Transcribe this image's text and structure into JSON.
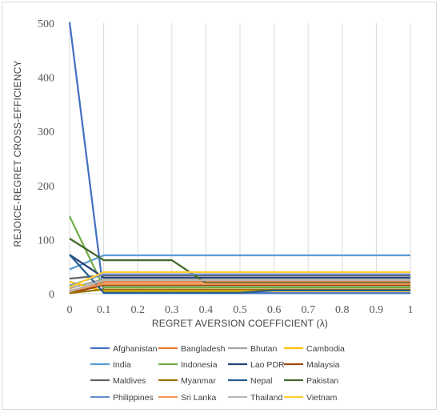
{
  "chart_data": {
    "type": "line",
    "title": "",
    "xlabel": "REGRET AVERSION COEFFICIENT (λ)",
    "ylabel": "REJOICE-REGRET CROSS-EFFICIENCY",
    "x": [
      0,
      0.1,
      0.2,
      0.3,
      0.4,
      0.5,
      0.6,
      0.7,
      0.8,
      0.9,
      1
    ],
    "x_tick_labels": [
      "0",
      "0.1",
      "0.2",
      "0.3",
      "0.4",
      "0.5",
      "0.6",
      "0.7",
      "0.8",
      "0.9",
      "1"
    ],
    "y_tick_labels": [
      "0",
      "100",
      "200",
      "300",
      "400",
      "500"
    ],
    "ylim": [
      0,
      500
    ],
    "xlim": [
      0,
      1
    ],
    "grid": "vertical",
    "legend_position": "bottom",
    "series": [
      {
        "name": "Afghanistan",
        "color": "#4472C4",
        "values": [
          502,
          1,
          1,
          1,
          1,
          1,
          1,
          1,
          1,
          1,
          1
        ]
      },
      {
        "name": "Bangladesh",
        "color": "#ED7D31",
        "values": [
          3,
          22,
          22,
          22,
          22,
          22,
          22,
          22,
          22,
          22,
          22
        ]
      },
      {
        "name": "Bhutan",
        "color": "#A5A5A5",
        "values": [
          10,
          27,
          27,
          27,
          27,
          27,
          27,
          27,
          27,
          27,
          27
        ]
      },
      {
        "name": "Cambodia",
        "color": "#FFC000",
        "values": [
          22,
          5,
          5,
          5,
          5,
          5,
          5,
          5,
          5,
          5,
          5
        ]
      },
      {
        "name": "India",
        "color": "#5B9BD5",
        "values": [
          45,
          71,
          71,
          71,
          71,
          71,
          71,
          71,
          71,
          71,
          71
        ]
      },
      {
        "name": "Indonesia",
        "color": "#70AD47",
        "values": [
          143,
          12,
          12,
          12,
          12,
          12,
          12,
          12,
          12,
          12,
          12
        ]
      },
      {
        "name": "Lao PDR",
        "color": "#264478",
        "values": [
          72,
          30,
          30,
          30,
          30,
          30,
          30,
          30,
          30,
          30,
          30
        ]
      },
      {
        "name": "Malaysia",
        "color": "#9E480E",
        "values": [
          1,
          16,
          16,
          16,
          16,
          16,
          16,
          16,
          16,
          16,
          16
        ]
      },
      {
        "name": "Maldives",
        "color": "#636363",
        "values": [
          28,
          34,
          34,
          34,
          34,
          34,
          34,
          34,
          34,
          34,
          34
        ]
      },
      {
        "name": "Myanmar",
        "color": "#997300",
        "values": [
          1,
          8,
          8,
          8,
          8,
          8,
          8,
          8,
          8,
          8,
          8
        ]
      },
      {
        "name": "Nepal",
        "color": "#255E91",
        "values": [
          72,
          2,
          2,
          2,
          2,
          2,
          6,
          6,
          6,
          6,
          6
        ]
      },
      {
        "name": "Pakistan",
        "color": "#43682B",
        "values": [
          102,
          62,
          62,
          62,
          20,
          20,
          20,
          20,
          20,
          20,
          20
        ]
      },
      {
        "name": "Philippines",
        "color": "#698ED0",
        "values": [
          15,
          36,
          36,
          36,
          36,
          36,
          36,
          36,
          36,
          36,
          36
        ]
      },
      {
        "name": "Sri Lanka",
        "color": "#F1975A",
        "values": [
          6,
          18,
          18,
          18,
          18,
          18,
          18,
          18,
          18,
          18,
          18
        ]
      },
      {
        "name": "Thailand",
        "color": "#B7B7B7",
        "values": [
          4,
          25,
          25,
          25,
          25,
          25,
          25,
          25,
          25,
          25,
          25
        ]
      },
      {
        "name": "Vietnam",
        "color": "#FFCD33",
        "values": [
          12,
          40,
          40,
          40,
          40,
          40,
          40,
          40,
          40,
          40,
          40
        ]
      }
    ]
  }
}
